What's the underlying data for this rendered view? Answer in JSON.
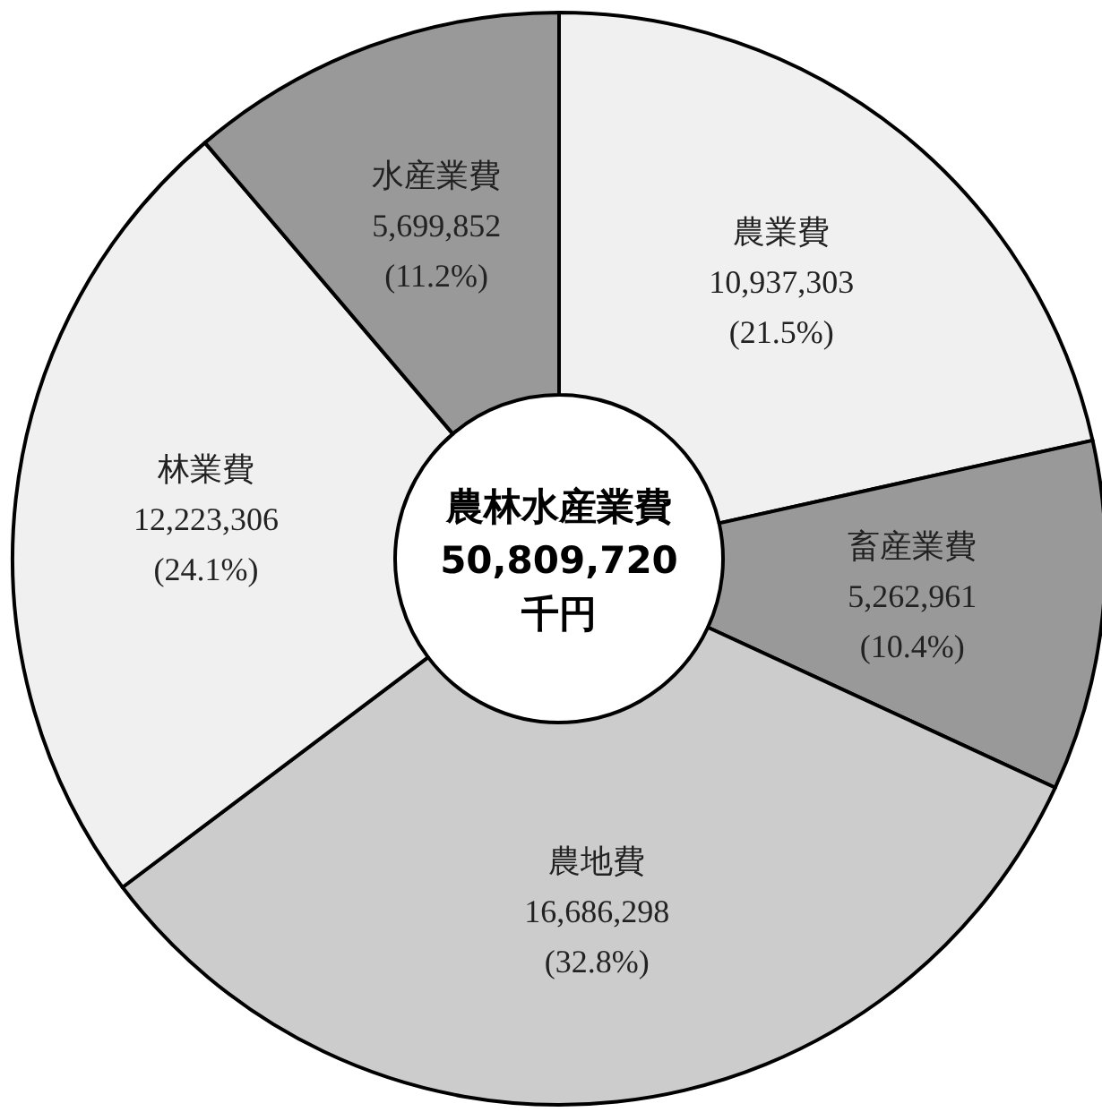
{
  "chart_data": {
    "type": "donut",
    "categories": [
      "農業費",
      "畜産業費",
      "農地費",
      "林業費",
      "水産業費"
    ],
    "values": [
      10937303,
      5262961,
      16686298,
      12223306,
      5699852
    ],
    "colors": [
      "#f0f0f0",
      "#999999",
      "#cccccc",
      "#f0f0f0",
      "#999999"
    ],
    "value_labels": [
      "10,937,303\n(21.5%)",
      "5,262,961\n(10.4%)",
      "16,686,298\n(32.8%)",
      "12,223,306\n(24.1%)",
      "5,699,852\n(11.2%)"
    ],
    "annotations": [
      "農林水産業費",
      "50,809,720",
      "千円"
    ]
  }
}
